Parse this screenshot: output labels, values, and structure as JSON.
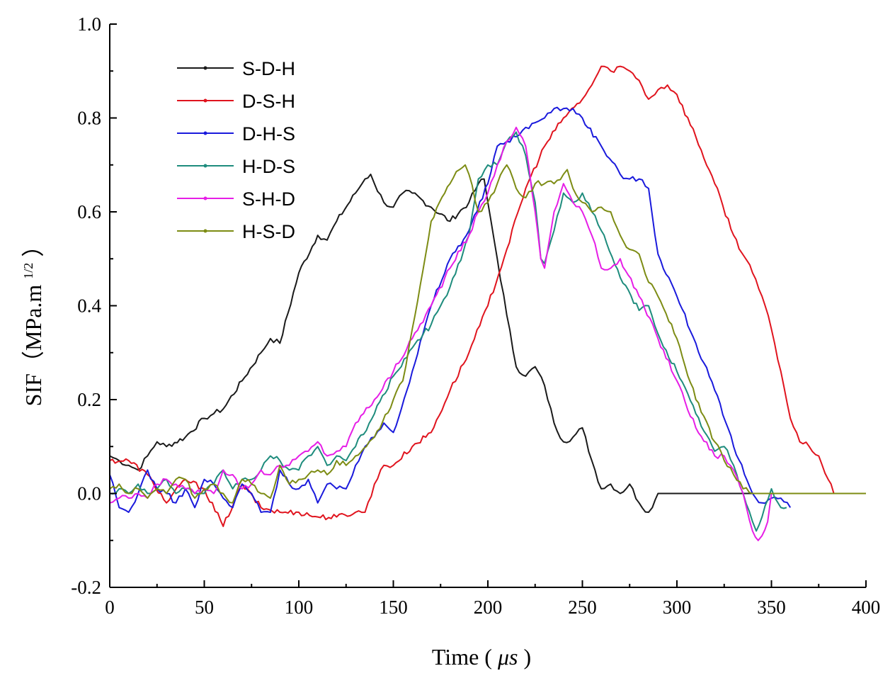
{
  "chart_data": {
    "type": "line",
    "title": "",
    "xlabel": "Time (μs)",
    "ylabel": "SIF（MPa.m1/2）",
    "xlabel_parts": {
      "text": "Time",
      "open": "(",
      "unit": "μs",
      "close": ")"
    },
    "ylabel_parts": {
      "text": "SIF（MPa.m",
      "sup": "1/2",
      "close": "）"
    },
    "xlim": [
      0,
      400
    ],
    "ylim": [
      -0.2,
      1.0
    ],
    "xticks": [
      0,
      50,
      100,
      150,
      200,
      250,
      300,
      350,
      400
    ],
    "yticks": [
      -0.2,
      0.0,
      0.2,
      0.4,
      0.6,
      0.8,
      1.0
    ],
    "xtick_labels": [
      "0",
      "50",
      "100",
      "150",
      "200",
      "250",
      "300",
      "350",
      "400"
    ],
    "ytick_labels": [
      "-0.2",
      "0.0",
      "0.2",
      "0.4",
      "0.6",
      "0.8",
      "1.0"
    ],
    "grid": false,
    "legend_position": "top-left",
    "series": [
      {
        "name": "S-D-H",
        "color": "#1a1a1a",
        "x": [
          0,
          5,
          10,
          15,
          20,
          25,
          30,
          40,
          50,
          55,
          60,
          70,
          80,
          85,
          90,
          100,
          110,
          115,
          120,
          130,
          135,
          138,
          140,
          145,
          150,
          155,
          160,
          170,
          180,
          190,
          195,
          198,
          200,
          205,
          210,
          215,
          220,
          225,
          230,
          235,
          240,
          245,
          250,
          255,
          260,
          265,
          270,
          275,
          280,
          285,
          287,
          290,
          300,
          320,
          350,
          380,
          400
        ],
        "y": [
          0.08,
          0.07,
          0.06,
          0.05,
          0.08,
          0.11,
          0.1,
          0.12,
          0.16,
          0.17,
          0.18,
          0.24,
          0.3,
          0.33,
          0.32,
          0.47,
          0.55,
          0.54,
          0.58,
          0.64,
          0.67,
          0.68,
          0.66,
          0.62,
          0.61,
          0.64,
          0.64,
          0.61,
          0.58,
          0.62,
          0.66,
          0.67,
          0.62,
          0.5,
          0.38,
          0.27,
          0.25,
          0.27,
          0.23,
          0.15,
          0.11,
          0.12,
          0.14,
          0.07,
          0.01,
          0.02,
          0.0,
          0.02,
          -0.02,
          -0.04,
          -0.03,
          0.0,
          0.0,
          0.0,
          0.0,
          0.0,
          0.0
        ]
      },
      {
        "name": "D-S-H",
        "color": "#e0141e",
        "x": [
          0,
          10,
          20,
          30,
          40,
          50,
          60,
          70,
          80,
          90,
          100,
          110,
          120,
          130,
          135,
          140,
          145,
          150,
          160,
          170,
          180,
          190,
          200,
          210,
          220,
          230,
          240,
          250,
          255,
          260,
          265,
          270,
          275,
          280,
          285,
          290,
          295,
          300,
          310,
          320,
          330,
          340,
          345,
          350,
          355,
          360,
          365,
          370,
          375,
          380,
          383,
          400
        ],
        "y": [
          0.07,
          0.07,
          0.04,
          -0.02,
          0.03,
          0.01,
          -0.07,
          0.02,
          -0.03,
          -0.04,
          -0.04,
          -0.05,
          -0.05,
          -0.04,
          -0.04,
          0.02,
          0.06,
          0.06,
          0.1,
          0.13,
          0.22,
          0.3,
          0.4,
          0.52,
          0.65,
          0.74,
          0.8,
          0.84,
          0.87,
          0.91,
          0.9,
          0.91,
          0.9,
          0.88,
          0.84,
          0.86,
          0.87,
          0.85,
          0.76,
          0.66,
          0.55,
          0.47,
          0.42,
          0.35,
          0.26,
          0.16,
          0.11,
          0.1,
          0.08,
          0.03,
          0.0,
          0.0
        ]
      },
      {
        "name": "D-H-S",
        "color": "#1a1adc",
        "x": [
          0,
          5,
          10,
          15,
          20,
          25,
          30,
          35,
          40,
          45,
          50,
          55,
          60,
          65,
          70,
          75,
          80,
          85,
          90,
          95,
          100,
          105,
          110,
          115,
          120,
          125,
          130,
          135,
          140,
          145,
          150,
          160,
          170,
          180,
          190,
          200,
          205,
          210,
          215,
          220,
          225,
          230,
          235,
          240,
          245,
          250,
          260,
          270,
          275,
          280,
          285,
          290,
          300,
          310,
          320,
          330,
          340,
          345,
          350,
          355,
          360
        ],
        "y": [
          0.04,
          -0.03,
          -0.04,
          0.0,
          0.05,
          0.01,
          0.0,
          -0.02,
          0.01,
          -0.03,
          0.03,
          0.02,
          -0.01,
          -0.03,
          0.02,
          0.0,
          -0.04,
          -0.04,
          0.05,
          0.02,
          0.01,
          0.03,
          -0.02,
          0.02,
          0.01,
          0.01,
          0.06,
          0.1,
          0.12,
          0.15,
          0.13,
          0.26,
          0.4,
          0.5,
          0.56,
          0.66,
          0.74,
          0.75,
          0.76,
          0.78,
          0.79,
          0.8,
          0.82,
          0.82,
          0.82,
          0.8,
          0.74,
          0.68,
          0.67,
          0.67,
          0.65,
          0.51,
          0.42,
          0.32,
          0.22,
          0.1,
          0.0,
          -0.02,
          -0.01,
          -0.01,
          -0.03
        ]
      },
      {
        "name": "H-D-S",
        "color": "#1e8c7d",
        "x": [
          0,
          5,
          10,
          15,
          20,
          25,
          30,
          35,
          40,
          45,
          50,
          55,
          60,
          65,
          70,
          75,
          80,
          85,
          90,
          95,
          100,
          105,
          110,
          115,
          120,
          125,
          130,
          140,
          150,
          160,
          170,
          175,
          180,
          190,
          195,
          200,
          205,
          210,
          215,
          220,
          225,
          228,
          230,
          235,
          240,
          245,
          250,
          255,
          260,
          270,
          280,
          285,
          290,
          300,
          310,
          320,
          325,
          330,
          335,
          340,
          342,
          345,
          350,
          355,
          358
        ],
        "y": [
          0.0,
          0.01,
          0.0,
          0.02,
          0.0,
          0.01,
          0.03,
          0.0,
          0.01,
          0.0,
          0.0,
          0.02,
          0.05,
          0.01,
          0.03,
          0.03,
          0.05,
          0.08,
          0.07,
          0.05,
          0.05,
          0.08,
          0.1,
          0.06,
          0.08,
          0.07,
          0.1,
          0.17,
          0.25,
          0.31,
          0.36,
          0.4,
          0.44,
          0.55,
          0.67,
          0.7,
          0.7,
          0.75,
          0.77,
          0.72,
          0.62,
          0.5,
          0.49,
          0.56,
          0.64,
          0.62,
          0.64,
          0.6,
          0.56,
          0.46,
          0.39,
          0.4,
          0.34,
          0.26,
          0.17,
          0.09,
          0.1,
          0.06,
          0.0,
          -0.06,
          -0.08,
          -0.05,
          0.01,
          -0.03,
          -0.03
        ]
      },
      {
        "name": "S-H-D",
        "color": "#e61ee6",
        "x": [
          0,
          5,
          10,
          15,
          20,
          25,
          30,
          35,
          40,
          45,
          50,
          55,
          60,
          65,
          70,
          75,
          80,
          85,
          90,
          95,
          100,
          105,
          110,
          115,
          120,
          125,
          130,
          140,
          150,
          160,
          170,
          180,
          190,
          195,
          200,
          205,
          210,
          215,
          220,
          225,
          228,
          230,
          235,
          240,
          245,
          250,
          255,
          260,
          265,
          270,
          280,
          290,
          300,
          310,
          320,
          325,
          330,
          335,
          340,
          343,
          345,
          348,
          350
        ],
        "y": [
          -0.02,
          -0.01,
          -0.01,
          0.0,
          -0.01,
          0.02,
          0.03,
          0.02,
          0.01,
          0.0,
          0.01,
          0.0,
          0.05,
          0.04,
          0.01,
          0.02,
          0.05,
          0.04,
          0.06,
          0.06,
          0.08,
          0.09,
          0.11,
          0.08,
          0.09,
          0.1,
          0.15,
          0.2,
          0.26,
          0.33,
          0.4,
          0.48,
          0.55,
          0.6,
          0.64,
          0.7,
          0.75,
          0.78,
          0.74,
          0.6,
          0.5,
          0.48,
          0.6,
          0.66,
          0.62,
          0.6,
          0.55,
          0.48,
          0.48,
          0.5,
          0.42,
          0.33,
          0.24,
          0.14,
          0.08,
          0.08,
          0.05,
          0.0,
          -0.08,
          -0.1,
          -0.09,
          -0.06,
          0.0
        ]
      },
      {
        "name": "H-S-D",
        "color": "#7d8c14",
        "x": [
          0,
          5,
          10,
          15,
          20,
          25,
          30,
          35,
          40,
          45,
          50,
          55,
          60,
          65,
          70,
          75,
          80,
          85,
          90,
          95,
          100,
          105,
          110,
          115,
          120,
          125,
          130,
          140,
          150,
          155,
          160,
          170,
          180,
          185,
          188,
          190,
          195,
          200,
          205,
          210,
          215,
          220,
          225,
          230,
          235,
          240,
          242,
          245,
          250,
          255,
          260,
          265,
          270,
          275,
          280,
          285,
          290,
          300,
          310,
          320,
          325,
          330,
          335,
          340,
          345,
          350,
          355,
          360,
          400
        ],
        "y": [
          0.01,
          0.02,
          0.0,
          0.01,
          -0.01,
          0.01,
          0.0,
          0.03,
          0.03,
          -0.01,
          0.01,
          0.02,
          0.0,
          -0.02,
          0.03,
          0.02,
          0.0,
          -0.01,
          0.06,
          0.02,
          0.03,
          0.04,
          0.05,
          0.04,
          0.07,
          0.06,
          0.08,
          0.12,
          0.2,
          0.24,
          0.35,
          0.58,
          0.66,
          0.69,
          0.7,
          0.68,
          0.6,
          0.62,
          0.66,
          0.7,
          0.65,
          0.63,
          0.66,
          0.66,
          0.66,
          0.68,
          0.69,
          0.65,
          0.62,
          0.6,
          0.61,
          0.6,
          0.55,
          0.52,
          0.51,
          0.45,
          0.42,
          0.33,
          0.2,
          0.11,
          0.07,
          0.04,
          0.01,
          0.0,
          0.0,
          0.0,
          0.0,
          0.0,
          0.0
        ]
      }
    ]
  }
}
